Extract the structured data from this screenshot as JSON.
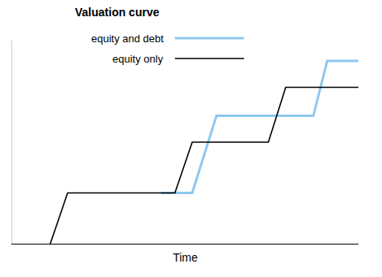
{
  "chart_data": {
    "type": "line",
    "title": "Valuation curve",
    "x_label": "Time",
    "series": [
      {
        "name": "equity and debt",
        "color": "#8ec8f0",
        "x": [
          43,
          52,
          59,
          87,
          91,
          100
        ],
        "values": [
          25,
          25,
          63,
          63,
          90,
          90
        ]
      },
      {
        "name": "equity only",
        "color": "#000000",
        "x": [
          11,
          16,
          47,
          52,
          74,
          79,
          100
        ],
        "values": [
          0,
          25,
          25,
          50,
          50,
          77,
          77
        ]
      }
    ],
    "xlim": [
      0,
      100
    ],
    "ylim": [
      0,
      100
    ],
    "xticks": [],
    "yticks": [],
    "tick_labels": false,
    "grid": false,
    "legend": "top left"
  }
}
